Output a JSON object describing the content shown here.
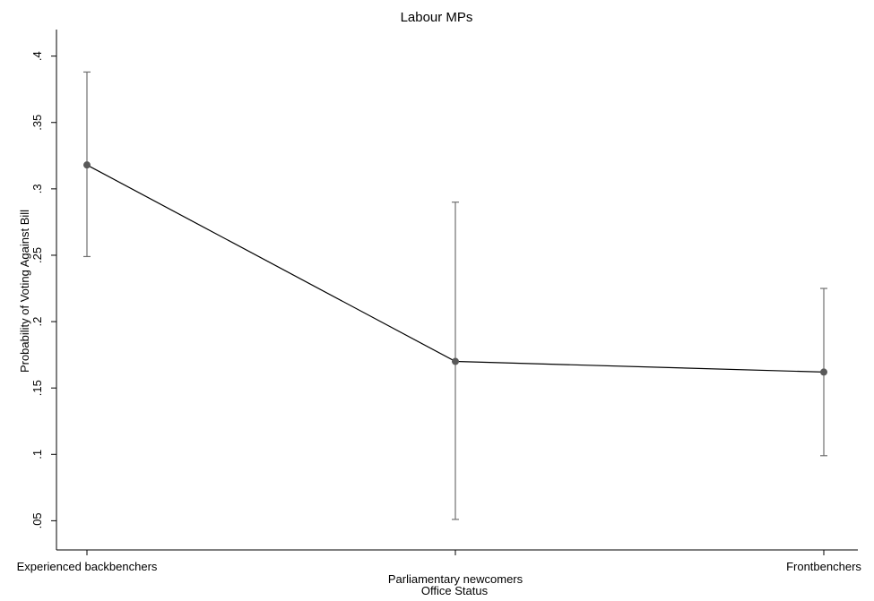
{
  "chart_data": {
    "type": "line",
    "title": "Labour MPs",
    "xlabel": "Office Status",
    "ylabel": "Probability of Voting Against Bill",
    "categories": [
      "Experienced backbenchers",
      "Parliamentary newcomers",
      "Frontbenchers"
    ],
    "series": [
      {
        "values": [
          0.318,
          0.17,
          0.162
        ],
        "ci_lower": [
          0.249,
          0.051,
          0.099
        ],
        "ci_upper": [
          0.388,
          0.29,
          0.225
        ]
      }
    ],
    "yticks": [
      ".05",
      ".1",
      ".15",
      ".2",
      ".25",
      ".3",
      ".35",
      ".4"
    ],
    "ytick_values": [
      0.05,
      0.1,
      0.15,
      0.2,
      0.25,
      0.3,
      0.35,
      0.4
    ],
    "ylim": [
      0.028,
      0.42
    ],
    "grid": false,
    "legend": "none",
    "colors": {
      "line": "#000000",
      "marker": "#595959",
      "errorbar": "#707070",
      "axis": "#000000"
    }
  }
}
